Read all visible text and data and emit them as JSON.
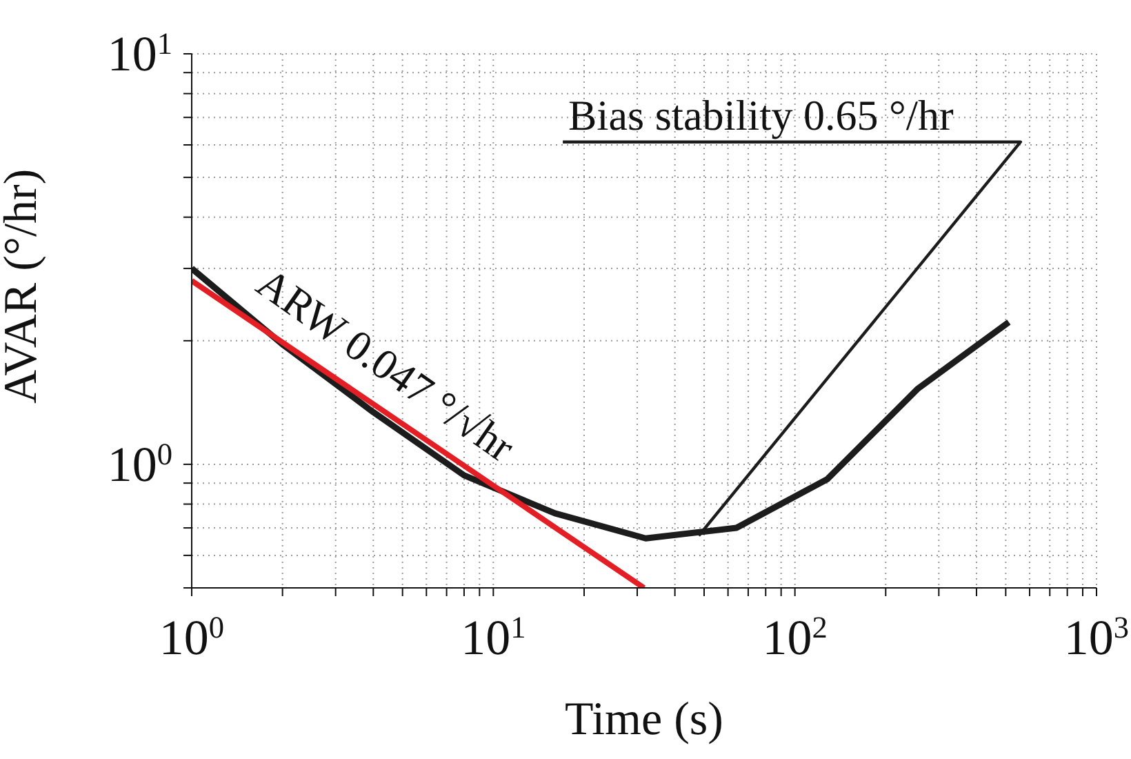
{
  "chart_data": {
    "type": "line",
    "xlabel": "Time (s)",
    "ylabel": "AVAR (°/hr)",
    "log": "xy",
    "grid": true,
    "marker": "none",
    "xlim": [
      1,
      1000
    ],
    "ylim": [
      0.5,
      10
    ],
    "xticks": [
      {
        "value": 1,
        "label": "10$^{0}$"
      },
      {
        "value": 2,
        "label": null
      },
      {
        "value": 3,
        "label": null
      },
      {
        "value": 4,
        "label": null
      },
      {
        "value": 5,
        "label": null
      },
      {
        "value": 6,
        "label": null
      },
      {
        "value": 7,
        "label": null
      },
      {
        "value": 8,
        "label": null
      },
      {
        "value": 9,
        "label": null
      },
      {
        "value": 10,
        "label": "10$^{1}$"
      },
      {
        "value": 20,
        "label": null
      },
      {
        "value": 30,
        "label": null
      },
      {
        "value": 40,
        "label": null
      },
      {
        "value": 50,
        "label": null
      },
      {
        "value": 60,
        "label": null
      },
      {
        "value": 70,
        "label": null
      },
      {
        "value": 80,
        "label": null
      },
      {
        "value": 90,
        "label": null
      },
      {
        "value": 100,
        "label": "10$^{2}$"
      },
      {
        "value": 200,
        "label": null
      },
      {
        "value": 300,
        "label": null
      },
      {
        "value": 400,
        "label": null
      },
      {
        "value": 500,
        "label": null
      },
      {
        "value": 600,
        "label": null
      },
      {
        "value": 700,
        "label": null
      },
      {
        "value": 800,
        "label": null
      },
      {
        "value": 900,
        "label": null
      },
      {
        "value": 1000,
        "label": "10$^{3}$"
      }
    ],
    "yticks": [
      {
        "value": 0.5,
        "label": null
      },
      {
        "value": 0.6,
        "label": null
      },
      {
        "value": 0.7,
        "label": null
      },
      {
        "value": 0.8,
        "label": null
      },
      {
        "value": 0.9,
        "label": null
      },
      {
        "value": 1,
        "label": "10$^{0}$"
      },
      {
        "value": 2,
        "label": null
      },
      {
        "value": 3,
        "label": null
      },
      {
        "value": 4,
        "label": null
      },
      {
        "value": 5,
        "label": null
      },
      {
        "value": 6,
        "label": null
      },
      {
        "value": 7,
        "label": null
      },
      {
        "value": 8,
        "label": null
      },
      {
        "value": 9,
        "label": null
      },
      {
        "value": 10,
        "label": "10$^{1}$"
      }
    ],
    "series": [
      {
        "color": "#1c1c1c",
        "x": [
          1,
          2,
          4,
          8,
          16,
          32,
          64,
          128,
          256,
          512
        ],
        "values": [
          3.0,
          1.96,
          1.34,
          0.94,
          0.76,
          0.66,
          0.7,
          0.92,
          1.53,
          2.22
        ]
      },
      {
        "color": "#e31e24",
        "x": [
          1,
          31.6
        ],
        "values": [
          2.8,
          0.5
        ]
      },
      {
        "color": "#1c1c1c",
        "x": [
          48,
          560,
          17
        ],
        "values": [
          0.67,
          6.1,
          6.1
        ]
      }
    ],
    "annotations": [
      "ARW 0.047 °/√hr",
      "Bias stability 0.65 °/hr"
    ]
  }
}
